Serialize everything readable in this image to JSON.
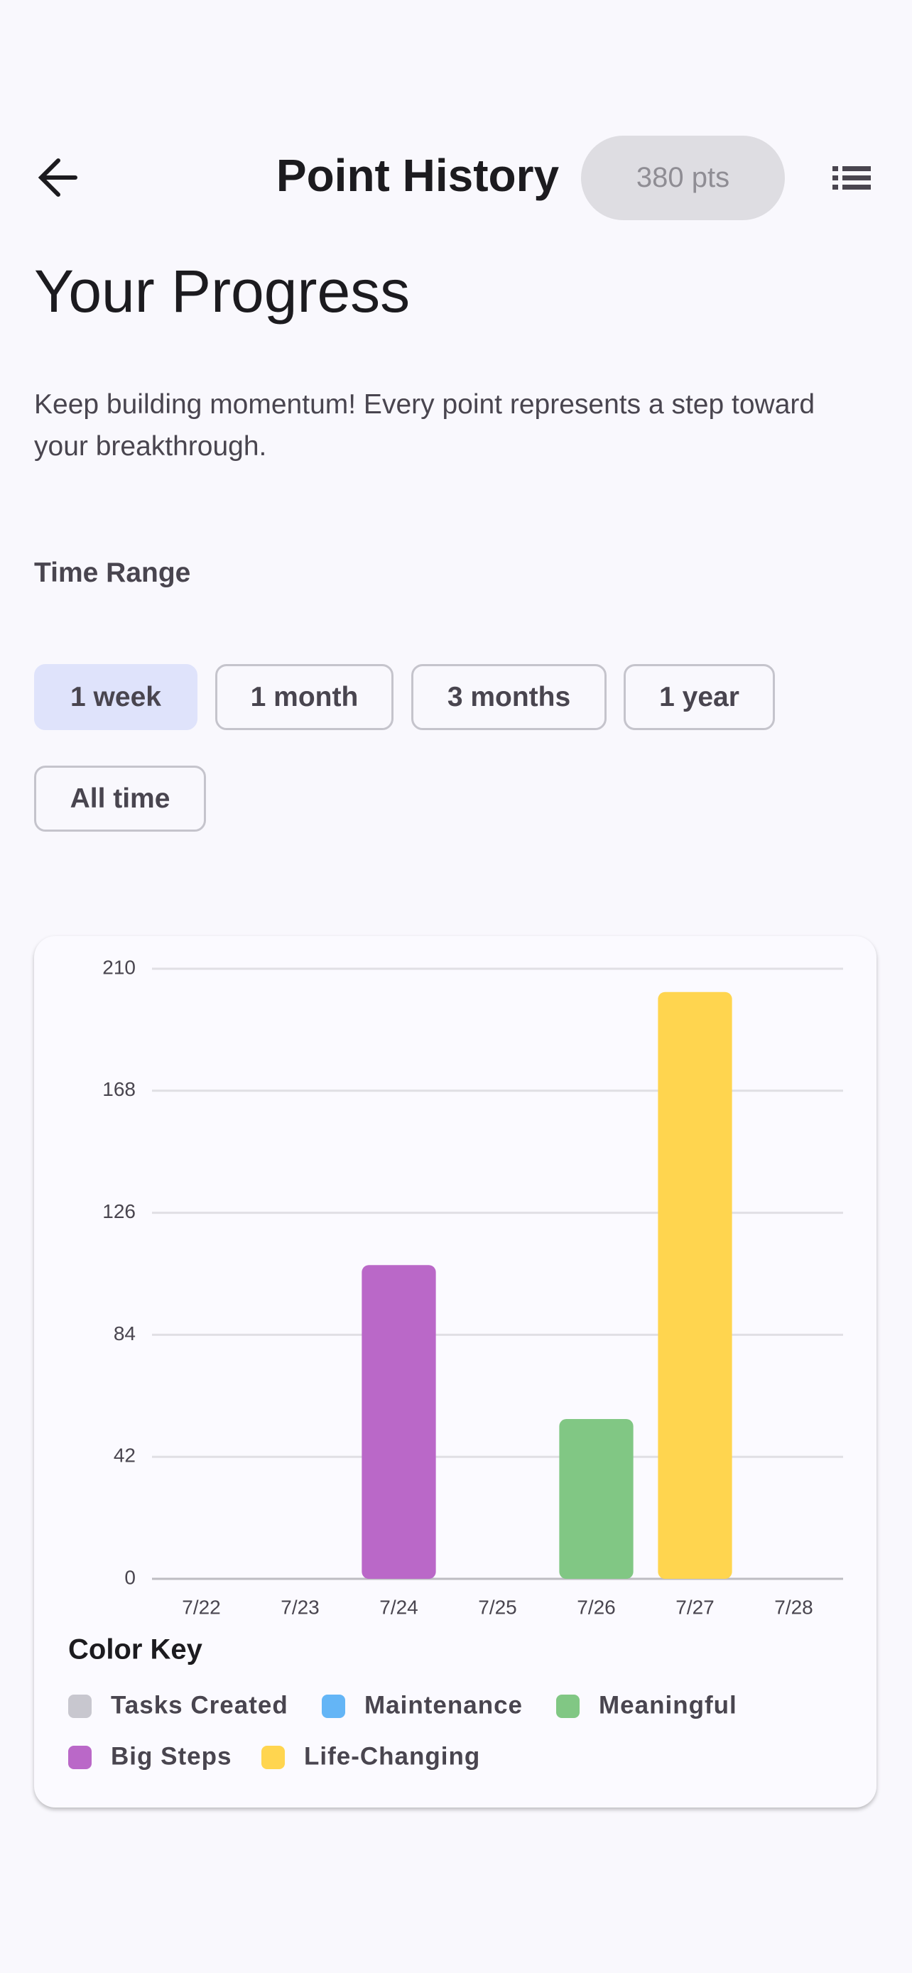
{
  "header": {
    "title": "Point History",
    "points": "380 pts"
  },
  "heading": "Your Progress",
  "description": "Keep building momentum! Every point represents a step toward your breakthrough.",
  "time_range": {
    "label": "Time Range",
    "options": [
      "1 week",
      "1 month",
      "3 months",
      "1 year",
      "All time"
    ],
    "selected": "1 week"
  },
  "chart_data": {
    "type": "bar",
    "stacked": true,
    "legend_title": "Color Key",
    "categories": [
      "7/22",
      "7/23",
      "7/24",
      "7/25",
      "7/26",
      "7/27",
      "7/28"
    ],
    "series": [
      {
        "name": "Tasks Created",
        "color": "#c8c7cf",
        "values": [
          0,
          0,
          0,
          0,
          0,
          0,
          0
        ]
      },
      {
        "name": "Maintenance",
        "color": "#64b5f6",
        "values": [
          0,
          0,
          0,
          0,
          0,
          0,
          0
        ]
      },
      {
        "name": "Meaningful",
        "color": "#81c784",
        "values": [
          0,
          0,
          0,
          0,
          55,
          0,
          0
        ]
      },
      {
        "name": "Big Steps",
        "color": "#ba68c8",
        "values": [
          0,
          0,
          108,
          0,
          0,
          0,
          0
        ]
      },
      {
        "name": "Life-Changing",
        "color": "#ffd54f",
        "values": [
          0,
          0,
          0,
          0,
          0,
          202,
          0
        ]
      }
    ],
    "ylim": [
      0,
      210
    ],
    "yticks": [
      0,
      42,
      84,
      126,
      168,
      210
    ],
    "grid": true
  }
}
